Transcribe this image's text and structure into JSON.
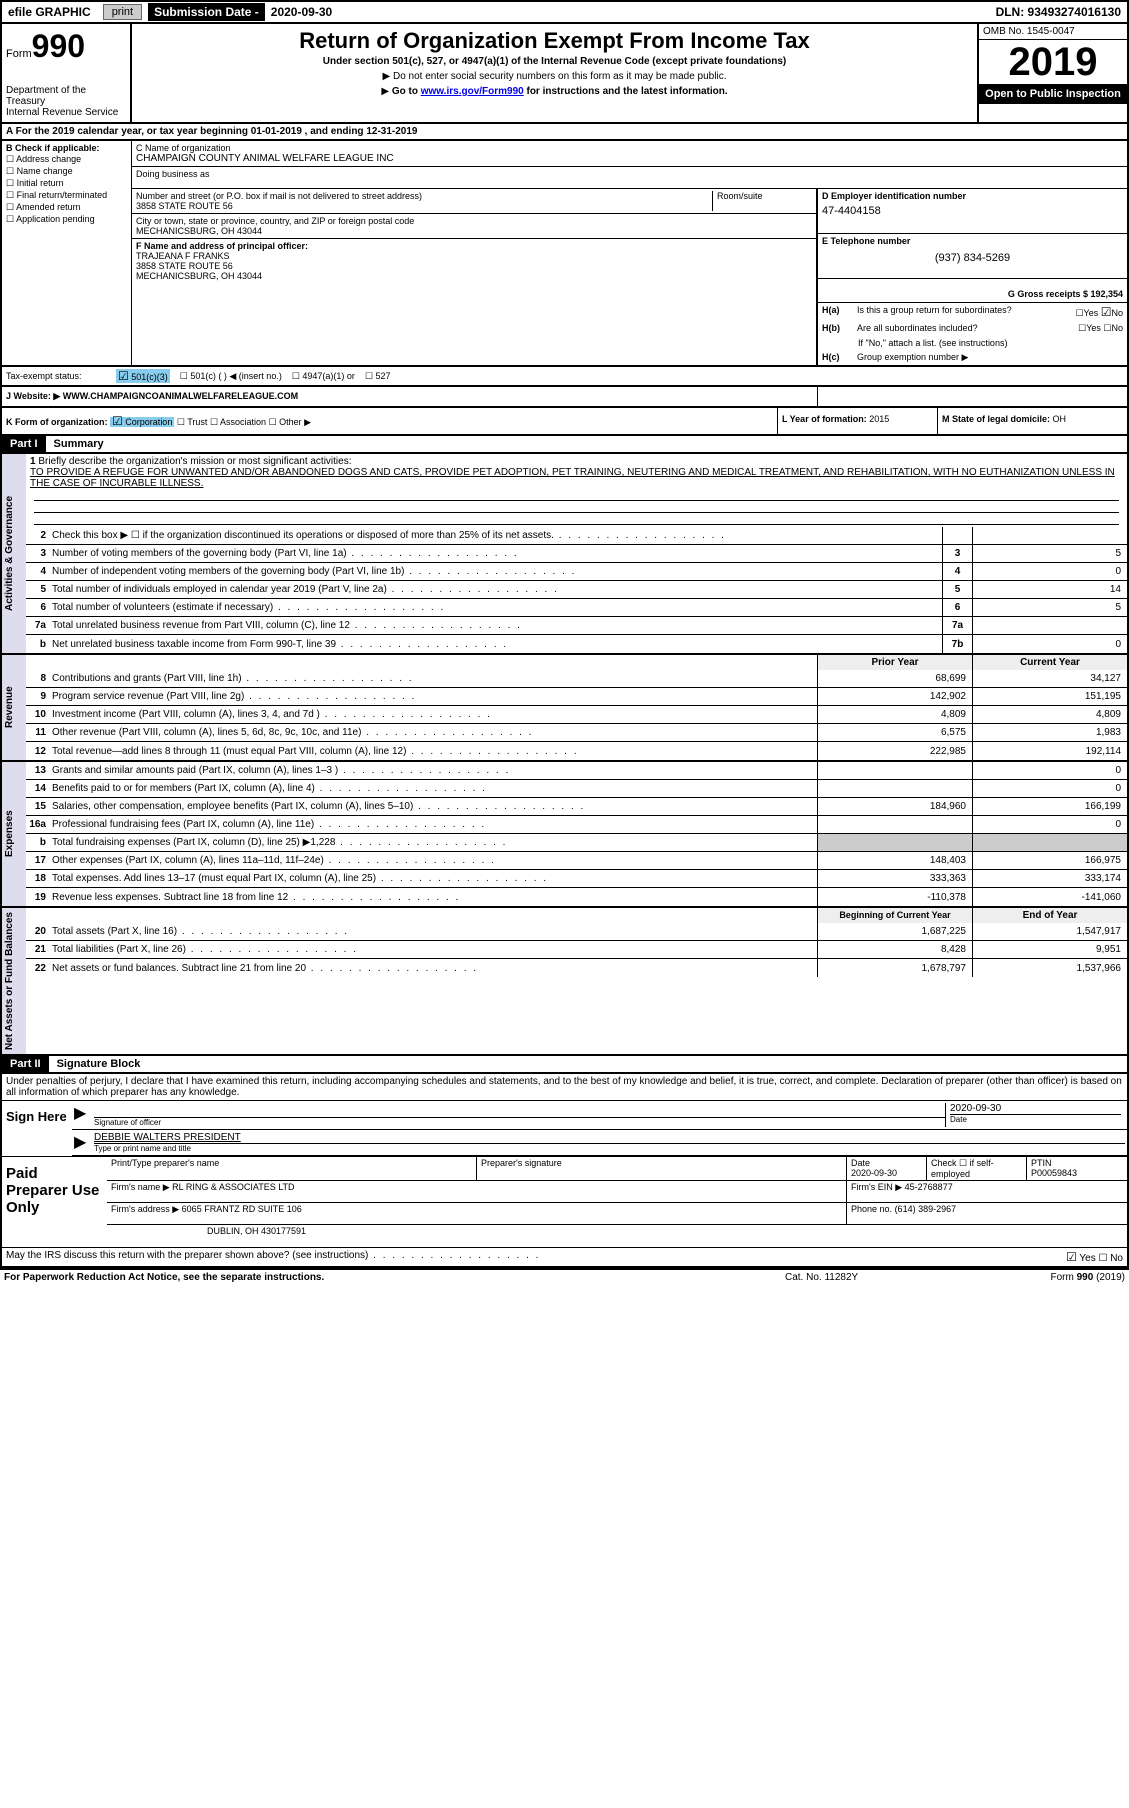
{
  "topbar": {
    "efile": "efile GRAPHIC",
    "print": "print",
    "sub_label": "Submission Date - ",
    "sub_date": "2020-09-30",
    "dln": "DLN: 93493274016130"
  },
  "header": {
    "form_prefix": "Form",
    "form_num": "990",
    "dept": "Department of the Treasury",
    "irs": "Internal Revenue Service",
    "title": "Return of Organization Exempt From Income Tax",
    "sub1": "Under section 501(c), 527, or 4947(a)(1) of the Internal Revenue Code (except private foundations)",
    "sub2": "Do not enter social security numbers on this form as it may be made public.",
    "sub3_pre": "Go to ",
    "sub3_link": "www.irs.gov/Form990",
    "sub3_post": " for instructions and the latest information.",
    "omb": "OMB No. 1545-0047",
    "year": "2019",
    "open": "Open to Public Inspection"
  },
  "cal_year": "A For the 2019 calendar year, or tax year beginning 01-01-2019   , and ending 12-31-2019",
  "box_b": {
    "label": "B Check if applicable:",
    "opts": [
      "Address change",
      "Name change",
      "Initial return",
      "Final return/terminated",
      "Amended return",
      "Application pending"
    ]
  },
  "org": {
    "name_label": "C Name of organization",
    "name": "CHAMPAIGN COUNTY ANIMAL WELFARE LEAGUE INC",
    "dba_label": "Doing business as",
    "street_label": "Number and street (or P.O. box if mail is not delivered to street address)",
    "room_label": "Room/suite",
    "street": "3858 STATE ROUTE 56",
    "city_label": "City or town, state or province, country, and ZIP or foreign postal code",
    "city": "MECHANICSBURG, OH  43044",
    "officer_label": "F Name and address of principal officer:",
    "officer_name": "TRAJEANA F FRANKS",
    "officer_street": "3858 STATE ROUTE 56",
    "officer_city": "MECHANICSBURG, OH  43044"
  },
  "d_box": {
    "label": "D Employer identification number",
    "ein": "47-4404158"
  },
  "e_box": {
    "label": "E Telephone number",
    "phone": "(937) 834-5269"
  },
  "g_box": {
    "label": "G Gross receipts $ 192,354"
  },
  "h": {
    "a": "Is this a group return for subordinates?",
    "b": "Are all subordinates included?",
    "b_note": "If \"No,\" attach a list. (see instructions)",
    "c": "Group exemption number ▶"
  },
  "status": {
    "label": "Tax-exempt status:",
    "o1": "501(c)(3)",
    "o2": "501(c) (  ) ◀ (insert no.)",
    "o3": "4947(a)(1) or",
    "o4": "527"
  },
  "website": {
    "label": "J   Website: ▶",
    "url": "WWW.CHAMPAIGNCOANIMALWELFARELEAGUE.COM"
  },
  "k": {
    "label": "K Form of organization:",
    "opts": [
      "Corporation",
      "Trust",
      "Association",
      "Other ▶"
    ]
  },
  "l": {
    "label": "L Year of formation: ",
    "val": "2015"
  },
  "m": {
    "label": "M State of legal domicile: ",
    "val": "OH"
  },
  "part1": {
    "hdr": "Part I",
    "title": "Summary"
  },
  "mission": {
    "num": "1",
    "label": "Briefly describe the organization's mission or most significant activities:",
    "text": "TO PROVIDE A REFUGE FOR UNWANTED AND/OR ABANDONED DOGS AND CATS, PROVIDE PET ADOPTION, PET TRAINING, NEUTERING AND MEDICAL TREATMENT, AND REHABILITATION, WITH NO EUTHANIZATION UNLESS IN THE CASE OF INCURABLE ILLNESS."
  },
  "gov_lines": [
    {
      "n": "2",
      "t": "Check this box ▶ ☐  if the organization discontinued its operations or disposed of more than 25% of its net assets.",
      "box": "",
      "v": ""
    },
    {
      "n": "3",
      "t": "Number of voting members of the governing body (Part VI, line 1a)",
      "box": "3",
      "v": "5"
    },
    {
      "n": "4",
      "t": "Number of independent voting members of the governing body (Part VI, line 1b)",
      "box": "4",
      "v": "0"
    },
    {
      "n": "5",
      "t": "Total number of individuals employed in calendar year 2019 (Part V, line 2a)",
      "box": "5",
      "v": "14"
    },
    {
      "n": "6",
      "t": "Total number of volunteers (estimate if necessary)",
      "box": "6",
      "v": "5"
    },
    {
      "n": "7a",
      "t": "Total unrelated business revenue from Part VIII, column (C), line 12",
      "box": "7a",
      "v": ""
    },
    {
      "n": "b",
      "t": "Net unrelated business taxable income from Form 990-T, line 39",
      "box": "7b",
      "v": "0"
    }
  ],
  "rev_hdr": {
    "py": "Prior Year",
    "cy": "Current Year"
  },
  "rev_lines": [
    {
      "n": "8",
      "t": "Contributions and grants (Part VIII, line 1h)",
      "py": "68,699",
      "cy": "34,127"
    },
    {
      "n": "9",
      "t": "Program service revenue (Part VIII, line 2g)",
      "py": "142,902",
      "cy": "151,195"
    },
    {
      "n": "10",
      "t": "Investment income (Part VIII, column (A), lines 3, 4, and 7d )",
      "py": "4,809",
      "cy": "4,809"
    },
    {
      "n": "11",
      "t": "Other revenue (Part VIII, column (A), lines 5, 6d, 8c, 9c, 10c, and 11e)",
      "py": "6,575",
      "cy": "1,983"
    },
    {
      "n": "12",
      "t": "Total revenue—add lines 8 through 11 (must equal Part VIII, column (A), line 12)",
      "py": "222,985",
      "cy": "192,114"
    }
  ],
  "exp_lines": [
    {
      "n": "13",
      "t": "Grants and similar amounts paid (Part IX, column (A), lines 1–3 )",
      "py": "",
      "cy": "0"
    },
    {
      "n": "14",
      "t": "Benefits paid to or for members (Part IX, column (A), line 4)",
      "py": "",
      "cy": "0"
    },
    {
      "n": "15",
      "t": "Salaries, other compensation, employee benefits (Part IX, column (A), lines 5–10)",
      "py": "184,960",
      "cy": "166,199"
    },
    {
      "n": "16a",
      "t": "Professional fundraising fees (Part IX, column (A), line 11e)",
      "py": "",
      "cy": "0"
    },
    {
      "n": "b",
      "t": "Total fundraising expenses (Part IX, column (D), line 25) ▶1,228",
      "py": "SHADE",
      "cy": "SHADE"
    },
    {
      "n": "17",
      "t": "Other expenses (Part IX, column (A), lines 11a–11d, 11f–24e)",
      "py": "148,403",
      "cy": "166,975"
    },
    {
      "n": "18",
      "t": "Total expenses. Add lines 13–17 (must equal Part IX, column (A), line 25)",
      "py": "333,363",
      "cy": "333,174"
    },
    {
      "n": "19",
      "t": "Revenue less expenses. Subtract line 18 from line 12",
      "py": "-110,378",
      "cy": "-141,060"
    }
  ],
  "net_hdr": {
    "py": "Beginning of Current Year",
    "cy": "End of Year"
  },
  "net_lines": [
    {
      "n": "20",
      "t": "Total assets (Part X, line 16)",
      "py": "1,687,225",
      "cy": "1,547,917"
    },
    {
      "n": "21",
      "t": "Total liabilities (Part X, line 26)",
      "py": "8,428",
      "cy": "9,951"
    },
    {
      "n": "22",
      "t": "Net assets or fund balances. Subtract line 21 from line 20",
      "py": "1,678,797",
      "cy": "1,537,966"
    }
  ],
  "vlabels": {
    "gov": "Activities & Governance",
    "rev": "Revenue",
    "exp": "Expenses",
    "net": "Net Assets or Fund Balances"
  },
  "part2": {
    "hdr": "Part II",
    "title": "Signature Block"
  },
  "sig": {
    "decl": "Under penalties of perjury, I declare that I have examined this return, including accompanying schedules and statements, and to the best of my knowledge and belief, it is true, correct, and complete. Declaration of preparer (other than officer) is based on all information of which preparer has any knowledge.",
    "sign_here": "Sign Here",
    "sig_officer": "Signature of officer",
    "date_label": "Date",
    "date": "2020-09-30",
    "nametitle": "DEBBIE WALTERS  PRESIDENT",
    "nametitle_label": "Type or print name and title"
  },
  "prep": {
    "label": "Paid Preparer Use Only",
    "h1": "Print/Type preparer's name",
    "h2": "Preparer's signature",
    "h3": "Date",
    "date": "2020-09-30",
    "h4": "Check ☐ if self-employed",
    "h5": "PTIN",
    "ptin": "P00059843",
    "firm_label": "Firm's name    ▶",
    "firm": "RL RING & ASSOCIATES LTD",
    "ein_label": "Firm's EIN ▶",
    "ein": "45-2768877",
    "addr_label": "Firm's address ▶",
    "addr1": "6065 FRANTZ RD SUITE 106",
    "addr2": "DUBLIN, OH  430177591",
    "phone_label": "Phone no.",
    "phone": "(614) 389-2967"
  },
  "discuss": "May the IRS discuss this return with the preparer shown above? (see instructions)",
  "footer": {
    "l": "For Paperwork Reduction Act Notice, see the separate instructions.",
    "m": "Cat. No. 11282Y",
    "r": "Form 990 (2019)"
  }
}
